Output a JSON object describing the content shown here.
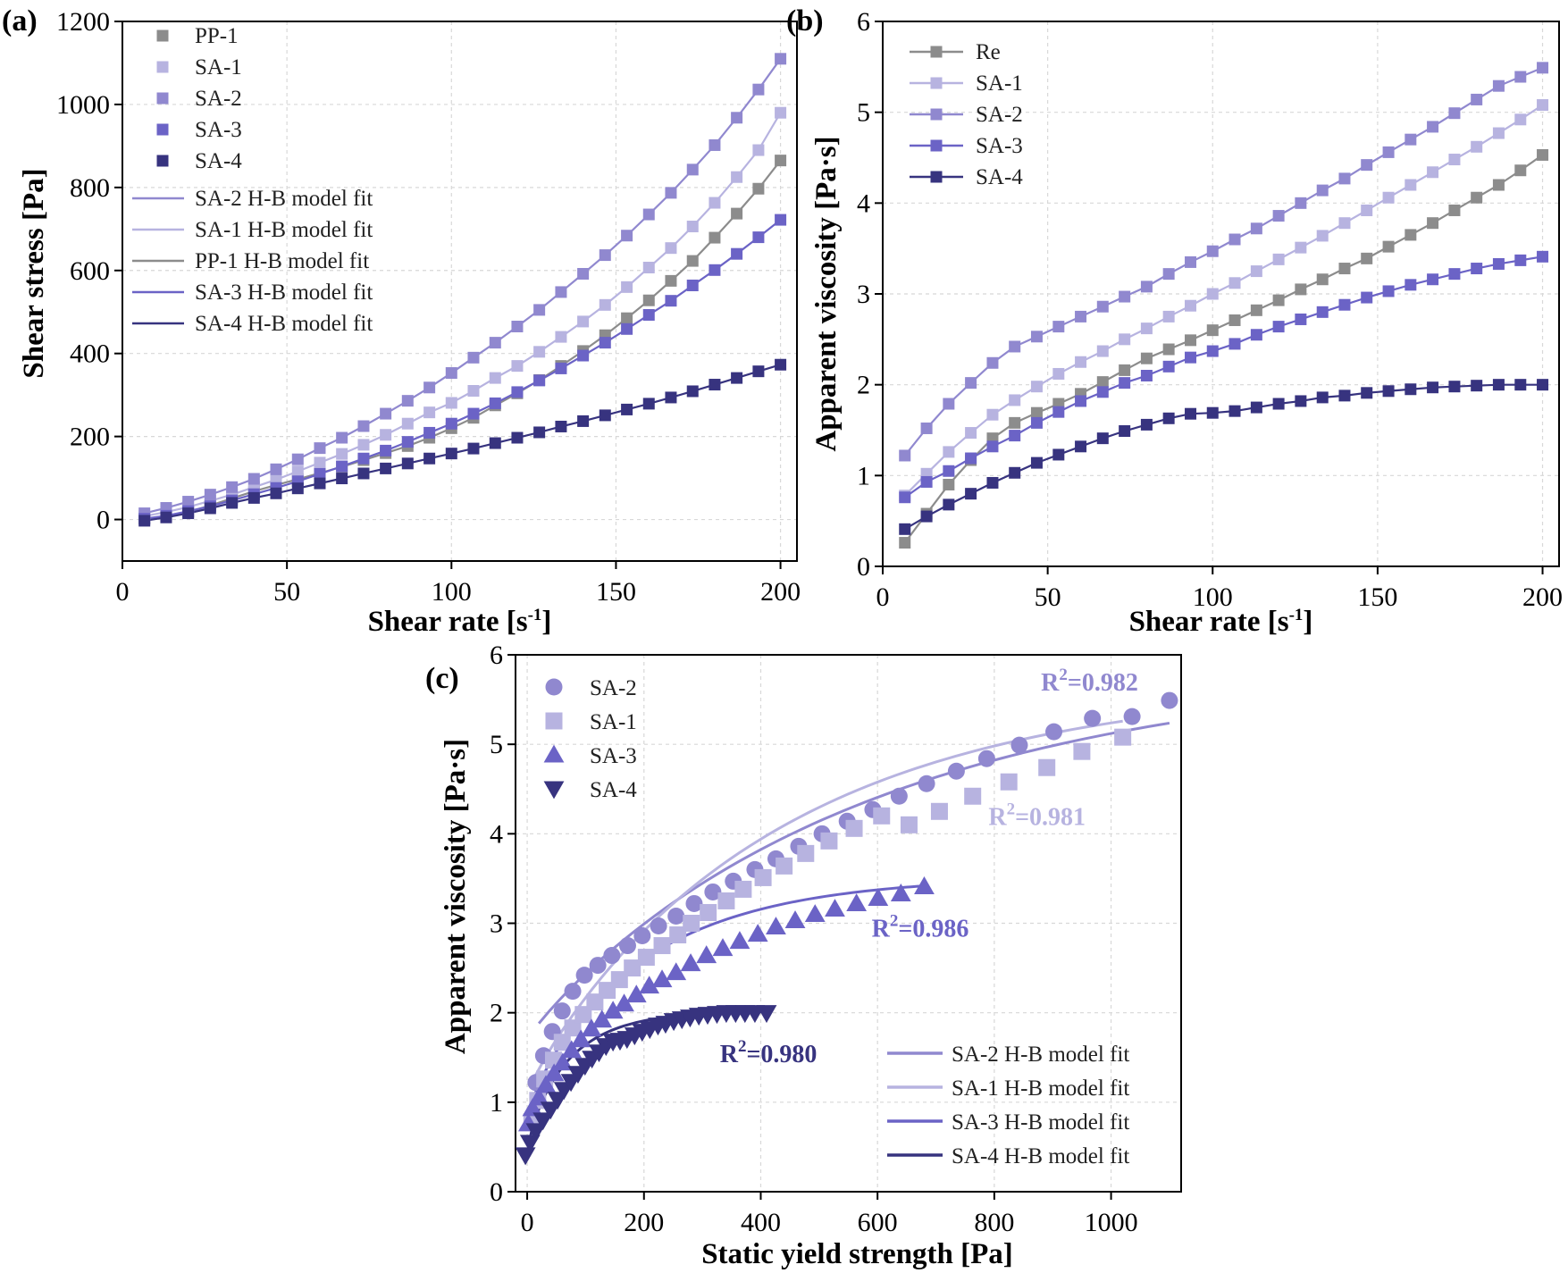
{
  "chart_data": [
    {
      "id": "a",
      "panel_label": "(a)",
      "type": "scatter",
      "xlabel": "Shear rate",
      "xunit": "[s",
      "xunit_sup": "-1",
      "xunit_end": "]",
      "ylabel": "Shear stress [Pa]",
      "xlim": [
        0,
        205
      ],
      "ylim": [
        -100,
        1200
      ],
      "xticks": [
        0,
        50,
        100,
        150,
        200
      ],
      "yticks": [
        0,
        200,
        400,
        600,
        800,
        1000,
        1200
      ],
      "grid": true,
      "legend_position": "top-left",
      "x": [
        6.7,
        13.3,
        20,
        26.7,
        33.3,
        40,
        46.7,
        53.3,
        60,
        66.7,
        73.3,
        80,
        86.7,
        93.3,
        100,
        106.7,
        113.3,
        120,
        126.7,
        133.3,
        140,
        146.7,
        153.3,
        160,
        166.7,
        173.3,
        180,
        186.7,
        193.3,
        200
      ],
      "series": [
        {
          "name": "PP-1",
          "color": "#8c8c8c",
          "marker": "square",
          "values": [
            2,
            6,
            18,
            34,
            51,
            68,
            83,
            97,
            112,
            127,
            143,
            160,
            177,
            197,
            220,
            245,
            275,
            304,
            336,
            370,
            406,
            444,
            485,
            528,
            575,
            623,
            679,
            737,
            797,
            865
          ]
        },
        {
          "name": "SA-1",
          "color": "#b7b3e0",
          "marker": "square",
          "values": [
            8,
            18,
            30,
            45,
            60,
            78,
            96,
            116,
            137,
            158,
            180,
            204,
            231,
            258,
            281,
            310,
            341,
            370,
            404,
            440,
            477,
            517,
            560,
            607,
            654,
            706,
            763,
            825,
            890,
            980
          ]
        },
        {
          "name": "SA-2",
          "color": "#9088cf",
          "marker": "square",
          "values": [
            15,
            28,
            43,
            60,
            78,
            98,
            121,
            145,
            172,
            197,
            225,
            255,
            286,
            318,
            353,
            390,
            426,
            465,
            505,
            548,
            592,
            637,
            684,
            735,
            787,
            843,
            902,
            968,
            1036,
            1110
          ]
        },
        {
          "name": "SA-3",
          "color": "#6b63c6",
          "marker": "square",
          "values": [
            2,
            9,
            20,
            32,
            46,
            61,
            76,
            92,
            110,
            128,
            147,
            166,
            187,
            209,
            231,
            255,
            280,
            307,
            335,
            364,
            395,
            426,
            459,
            493,
            527,
            564,
            601,
            640,
            680,
            722
          ]
        },
        {
          "name": "SA-4",
          "color": "#37337f",
          "marker": "square",
          "values": [
            -3,
            5,
            15,
            27,
            40,
            52,
            63,
            75,
            87,
            99,
            111,
            123,
            135,
            147,
            159,
            171,
            184,
            197,
            210,
            224,
            237,
            251,
            265,
            279,
            294,
            309,
            325,
            341,
            357,
            373
          ]
        }
      ],
      "fit_legend": [
        {
          "name": "SA-2 H-B model fit",
          "color": "#9088cf"
        },
        {
          "name": "SA-1 H-B model fit",
          "color": "#b7b3e0"
        },
        {
          "name": "PP-1 H-B model fit",
          "color": "#8c8c8c"
        },
        {
          "name": "SA-3 H-B model fit",
          "color": "#6b63c6"
        },
        {
          "name": "SA-4 H-B model fit",
          "color": "#37337f"
        }
      ]
    },
    {
      "id": "b",
      "panel_label": "(b)",
      "type": "line",
      "xlabel": "Shear rate",
      "xunit": "[s",
      "xunit_sup": "-1",
      "xunit_end": "]",
      "ylabel": "Apparent viscosity [Pa·s]",
      "xlim": [
        0,
        205
      ],
      "ylim": [
        0,
        6
      ],
      "xticks": [
        0,
        50,
        100,
        150,
        200
      ],
      "yticks": [
        0,
        1,
        2,
        3,
        4,
        5,
        6
      ],
      "grid": true,
      "legend_position": "top-left",
      "x": [
        6.7,
        13.3,
        20,
        26.7,
        33.3,
        40,
        46.7,
        53.3,
        60,
        66.7,
        73.3,
        80,
        86.7,
        93.3,
        100,
        106.7,
        113.3,
        120,
        126.7,
        133.3,
        140,
        146.7,
        153.3,
        160,
        166.7,
        173.3,
        180,
        186.7,
        193.3,
        200
      ],
      "series": [
        {
          "name": "Re",
          "color": "#8c8c8c",
          "marker": "square",
          "values": [
            0.26,
            0.58,
            0.9,
            1.17,
            1.41,
            1.58,
            1.69,
            1.79,
            1.9,
            2.03,
            2.16,
            2.29,
            2.39,
            2.49,
            2.6,
            2.71,
            2.82,
            2.93,
            3.05,
            3.16,
            3.28,
            3.39,
            3.52,
            3.65,
            3.78,
            3.92,
            4.06,
            4.2,
            4.36,
            4.53
          ]
        },
        {
          "name": "SA-1",
          "color": "#b7b3e0",
          "marker": "square",
          "values": [
            0.78,
            1.02,
            1.26,
            1.47,
            1.67,
            1.83,
            1.98,
            2.12,
            2.25,
            2.37,
            2.5,
            2.62,
            2.75,
            2.87,
            3.0,
            3.12,
            3.25,
            3.38,
            3.51,
            3.64,
            3.78,
            3.92,
            4.06,
            4.2,
            4.34,
            4.48,
            4.62,
            4.77,
            4.92,
            5.08
          ]
        },
        {
          "name": "SA-2",
          "color": "#9088cf",
          "marker": "square",
          "values": [
            1.22,
            1.52,
            1.79,
            2.02,
            2.24,
            2.42,
            2.53,
            2.64,
            2.75,
            2.86,
            2.97,
            3.08,
            3.22,
            3.35,
            3.47,
            3.6,
            3.72,
            3.86,
            4.0,
            4.14,
            4.27,
            4.42,
            4.56,
            4.7,
            4.84,
            4.99,
            5.14,
            5.29,
            5.39,
            5.49
          ]
        },
        {
          "name": "SA-3",
          "color": "#6b63c6",
          "marker": "square",
          "values": [
            0.76,
            0.93,
            1.05,
            1.19,
            1.32,
            1.44,
            1.58,
            1.7,
            1.82,
            1.92,
            2.02,
            2.1,
            2.2,
            2.3,
            2.37,
            2.45,
            2.55,
            2.64,
            2.72,
            2.8,
            2.88,
            2.96,
            3.03,
            3.1,
            3.16,
            3.22,
            3.28,
            3.33,
            3.37,
            3.41
          ]
        },
        {
          "name": "SA-4",
          "color": "#37337f",
          "marker": "square",
          "values": [
            0.41,
            0.55,
            0.68,
            0.8,
            0.92,
            1.03,
            1.14,
            1.23,
            1.32,
            1.41,
            1.49,
            1.56,
            1.63,
            1.68,
            1.69,
            1.71,
            1.75,
            1.79,
            1.82,
            1.86,
            1.88,
            1.91,
            1.93,
            1.95,
            1.97,
            1.98,
            1.99,
            2.0,
            2.0,
            2.0
          ]
        }
      ]
    },
    {
      "id": "c",
      "panel_label": "(c)",
      "type": "scatter",
      "xlabel": "Static yield strength [Pa]",
      "ylabel": "Apparent viscosity [Pa·s]",
      "xlim": [
        -20,
        1120
      ],
      "ylim": [
        0,
        6
      ],
      "xticks": [
        0,
        200,
        400,
        600,
        800,
        1000
      ],
      "yticks": [
        0,
        1,
        2,
        3,
        4,
        5,
        6
      ],
      "grid": true,
      "legend_position": "top-left",
      "series": [
        {
          "name": "SA-2",
          "color": "#9088cf",
          "marker": "circle",
          "x": [
            15,
            28,
            43,
            60,
            78,
            98,
            121,
            145,
            172,
            197,
            225,
            255,
            286,
            318,
            353,
            390,
            426,
            465,
            505,
            548,
            592,
            637,
            684,
            735,
            787,
            843,
            902,
            968,
            1036,
            1100
          ],
          "y": [
            1.22,
            1.52,
            1.79,
            2.02,
            2.24,
            2.42,
            2.53,
            2.64,
            2.75,
            2.86,
            2.97,
            3.08,
            3.22,
            3.35,
            3.47,
            3.6,
            3.72,
            3.86,
            4.0,
            4.14,
            4.27,
            4.42,
            4.56,
            4.7,
            4.84,
            4.99,
            5.14,
            5.29,
            5.31,
            5.49
          ],
          "fit": {
            "x": [
              20,
              1100
            ],
            "a": 1.7,
            "b": 4.2,
            "k": 0.0016,
            "p": 0.91
          }
        },
        {
          "name": "SA-1",
          "color": "#b7b3e0",
          "marker": "square",
          "x": [
            8,
            18,
            30,
            45,
            60,
            78,
            96,
            116,
            137,
            158,
            180,
            204,
            231,
            258,
            281,
            310,
            341,
            370,
            404,
            440,
            477,
            517,
            560,
            607,
            654,
            706,
            763,
            825,
            890,
            950,
            1020
          ],
          "y": [
            0.78,
            1.02,
            1.26,
            1.47,
            1.67,
            1.83,
            1.98,
            2.12,
            2.25,
            2.37,
            2.5,
            2.62,
            2.75,
            2.87,
            3.0,
            3.12,
            3.25,
            3.38,
            3.51,
            3.64,
            3.78,
            3.92,
            4.06,
            4.2,
            4.1,
            4.25,
            4.42,
            4.58,
            4.74,
            4.92,
            5.08
          ],
          "fit": {
            "x": [
              10,
              1020
            ],
            "a": 1.1,
            "b": 4.6,
            "k": 0.0022,
            "p": 0.9
          }
        },
        {
          "name": "SA-3",
          "color": "#6b63c6",
          "marker": "triangle-up",
          "x": [
            2,
            9,
            20,
            32,
            46,
            61,
            76,
            92,
            110,
            128,
            147,
            166,
            187,
            209,
            231,
            255,
            280,
            307,
            335,
            364,
            395,
            426,
            459,
            493,
            527,
            564,
            601,
            640,
            680
          ],
          "y": [
            0.76,
            0.93,
            1.05,
            1.19,
            1.32,
            1.44,
            1.58,
            1.7,
            1.82,
            1.92,
            2.02,
            2.1,
            2.2,
            2.3,
            2.37,
            2.45,
            2.55,
            2.64,
            2.72,
            2.8,
            2.88,
            2.96,
            3.03,
            3.1,
            3.16,
            3.22,
            3.28,
            3.33,
            3.41
          ],
          "fit": {
            "x": [
              5,
              680
            ],
            "a": 0.82,
            "b": 2.7,
            "k": 0.0045,
            "p": 0.8
          }
        },
        {
          "name": "SA-4",
          "color": "#37337f",
          "marker": "triangle-down",
          "x": [
            -3,
            5,
            15,
            27,
            40,
            52,
            63,
            75,
            87,
            99,
            111,
            123,
            135,
            147,
            159,
            171,
            184,
            197,
            210,
            224,
            237,
            251,
            265,
            279,
            294,
            309,
            325,
            341,
            357,
            373,
            390,
            410
          ],
          "y": [
            0.41,
            0.55,
            0.68,
            0.8,
            0.92,
            1.03,
            1.14,
            1.23,
            1.32,
            1.41,
            1.49,
            1.56,
            1.63,
            1.68,
            1.69,
            1.71,
            1.75,
            1.79,
            1.82,
            1.86,
            1.88,
            1.91,
            1.93,
            1.95,
            1.97,
            1.98,
            1.99,
            2.0,
            2.0,
            2.0,
            2.0,
            2.0
          ],
          "fit": {
            "x": [
              0,
              415
            ],
            "a": 0.42,
            "b": 1.6,
            "k": 0.012,
            "p": 0.75
          }
        }
      ],
      "fit_legend": [
        {
          "name": "SA-2 H-B model fit",
          "color": "#9088cf"
        },
        {
          "name": "SA-1 H-B model fit",
          "color": "#b7b3e0"
        },
        {
          "name": "SA-3 H-B model fit",
          "color": "#6b63c6"
        },
        {
          "name": "SA-4 H-B model fit",
          "color": "#37337f"
        }
      ],
      "annotations": [
        {
          "text": "R",
          "sup": "2",
          "rest": "=0.982",
          "color": "#9088cf",
          "at": [
            880,
            5.6
          ]
        },
        {
          "text": "R",
          "sup": "2",
          "rest": "=0.981",
          "color": "#b7b3e0",
          "at": [
            790,
            4.1
          ]
        },
        {
          "text": "R",
          "sup": "2",
          "rest": "=0.986",
          "color": "#6b63c6",
          "at": [
            590,
            2.85
          ]
        },
        {
          "text": "R",
          "sup": "2",
          "rest": "=0.980",
          "color": "#37337f",
          "at": [
            330,
            1.45
          ]
        }
      ]
    }
  ]
}
